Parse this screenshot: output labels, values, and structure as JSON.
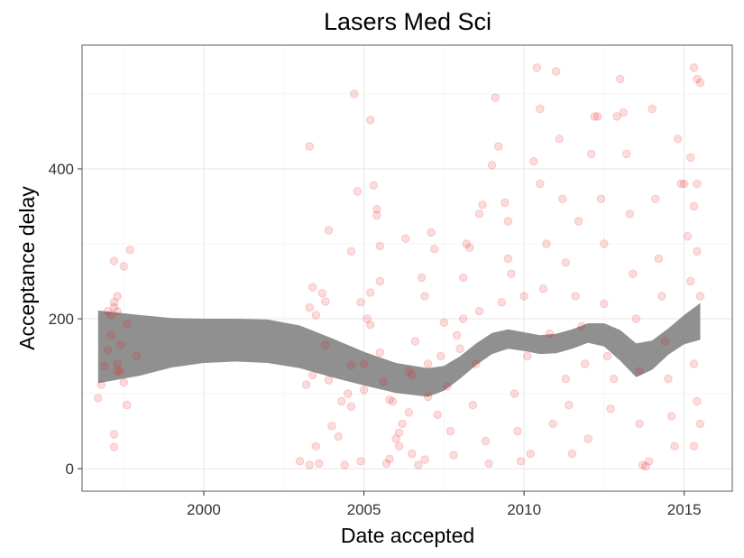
{
  "chart_data": {
    "type": "scatter",
    "title": "Lasers Med Sci",
    "xlabel": "Date accepted",
    "ylabel": "Acceptance delay",
    "xlim": [
      1996.2,
      2016.5
    ],
    "ylim": [
      -30,
      565
    ],
    "x_ticks": [
      2000,
      2005,
      2010,
      2015
    ],
    "y_ticks": [
      0,
      200,
      400
    ],
    "x_tick_labels": [
      "2000",
      "2005",
      "2010",
      "2015"
    ],
    "y_tick_labels": [
      "0",
      "200",
      "400"
    ],
    "grid": true,
    "legend": "none",
    "point_color": "#ee2222",
    "band_color": "#8a8a8a",
    "smooth_band": {
      "x": [
        1996.7,
        1998.0,
        1999.0,
        2000.0,
        2001.0,
        2002.0,
        2003.0,
        2004.0,
        2005.0,
        2006.0,
        2007.0,
        2007.5,
        2008.0,
        2008.5,
        2009.0,
        2009.5,
        2010.0,
        2010.5,
        2011.0,
        2011.5,
        2012.0,
        2012.5,
        2013.0,
        2013.5,
        2014.0,
        2014.5,
        2015.0,
        2015.5
      ],
      "upper": [
        211,
        205,
        201,
        200,
        200,
        199,
        191,
        174,
        156,
        141,
        134,
        137,
        150,
        167,
        181,
        186,
        182,
        178,
        180,
        186,
        194,
        194,
        185,
        167,
        171,
        187,
        205,
        221
      ],
      "lower": [
        114,
        124,
        135,
        141,
        143,
        141,
        134,
        122,
        111,
        101,
        96,
        104,
        120,
        138,
        153,
        160,
        157,
        153,
        154,
        160,
        168,
        163,
        144,
        122,
        132,
        152,
        166,
        172
      ]
    },
    "points": [
      [
        1996.7,
        94
      ],
      [
        1996.8,
        112
      ],
      [
        1996.9,
        137
      ],
      [
        1997.0,
        158
      ],
      [
        1997.1,
        178
      ],
      [
        1997.1,
        205
      ],
      [
        1997.2,
        215
      ],
      [
        1997.2,
        222
      ],
      [
        1997.3,
        230
      ],
      [
        1997.3,
        210
      ],
      [
        1997.2,
        277
      ],
      [
        1997.5,
        270
      ],
      [
        1997.7,
        292
      ],
      [
        1997.6,
        193
      ],
      [
        1997.4,
        165
      ],
      [
        1997.3,
        130
      ],
      [
        1997.5,
        115
      ],
      [
        1997.6,
        85
      ],
      [
        1997.4,
        130
      ],
      [
        1997.2,
        46
      ],
      [
        1997.2,
        29
      ],
      [
        1997.9,
        150
      ],
      [
        1997.0,
        210
      ],
      [
        1997.3,
        140
      ],
      [
        2003.0,
        10
      ],
      [
        2003.3,
        5
      ],
      [
        2003.5,
        30
      ],
      [
        2003.6,
        7
      ],
      [
        2003.2,
        112
      ],
      [
        2003.4,
        125
      ],
      [
        2003.3,
        215
      ],
      [
        2003.5,
        205
      ],
      [
        2003.4,
        242
      ],
      [
        2003.3,
        430
      ],
      [
        2003.7,
        234
      ],
      [
        2003.8,
        223
      ],
      [
        2003.9,
        318
      ],
      [
        2003.8,
        165
      ],
      [
        2003.9,
        118
      ],
      [
        2004.0,
        57
      ],
      [
        2004.2,
        43
      ],
      [
        2004.3,
        90
      ],
      [
        2004.4,
        5
      ],
      [
        2004.5,
        100
      ],
      [
        2004.6,
        138
      ],
      [
        2004.6,
        83
      ],
      [
        2004.7,
        500
      ],
      [
        2004.8,
        370
      ],
      [
        2004.9,
        222
      ],
      [
        2004.6,
        290
      ],
      [
        2004.9,
        10
      ],
      [
        2005.0,
        105
      ],
      [
        2005.0,
        140
      ],
      [
        2005.1,
        200
      ],
      [
        2005.2,
        192
      ],
      [
        2005.4,
        346
      ],
      [
        2005.4,
        338
      ],
      [
        2005.5,
        297
      ],
      [
        2005.3,
        378
      ],
      [
        2005.2,
        465
      ],
      [
        2005.5,
        155
      ],
      [
        2005.8,
        92
      ],
      [
        2005.9,
        90
      ],
      [
        2005.2,
        235
      ],
      [
        2005.5,
        250
      ],
      [
        2005.6,
        116
      ],
      [
        2005.7,
        7
      ],
      [
        2005.8,
        13
      ],
      [
        2006.0,
        40
      ],
      [
        2006.1,
        30
      ],
      [
        2006.2,
        60
      ],
      [
        2006.4,
        130
      ],
      [
        2006.5,
        20
      ],
      [
        2006.7,
        5
      ],
      [
        2006.9,
        12
      ],
      [
        2006.3,
        307
      ],
      [
        2006.1,
        48
      ],
      [
        2006.4,
        75
      ],
      [
        2006.5,
        125
      ],
      [
        2006.6,
        170
      ],
      [
        2006.8,
        255
      ],
      [
        2006.9,
        230
      ],
      [
        2007.0,
        96
      ],
      [
        2007.0,
        140
      ],
      [
        2007.1,
        315
      ],
      [
        2007.2,
        293
      ],
      [
        2007.3,
        72
      ],
      [
        2007.4,
        150
      ],
      [
        2007.5,
        195
      ],
      [
        2007.6,
        110
      ],
      [
        2007.7,
        50
      ],
      [
        2007.8,
        18
      ],
      [
        2007.9,
        178
      ],
      [
        2008.0,
        160
      ],
      [
        2008.1,
        200
      ],
      [
        2008.1,
        255
      ],
      [
        2008.2,
        300
      ],
      [
        2008.3,
        295
      ],
      [
        2008.4,
        85
      ],
      [
        2008.5,
        140
      ],
      [
        2008.6,
        210
      ],
      [
        2008.6,
        340
      ],
      [
        2008.7,
        352
      ],
      [
        2008.8,
        37
      ],
      [
        2008.9,
        7
      ],
      [
        2009.0,
        405
      ],
      [
        2009.1,
        495
      ],
      [
        2009.2,
        430
      ],
      [
        2009.3,
        222
      ],
      [
        2009.4,
        355
      ],
      [
        2009.5,
        330
      ],
      [
        2009.5,
        280
      ],
      [
        2009.6,
        260
      ],
      [
        2009.7,
        100
      ],
      [
        2009.8,
        50
      ],
      [
        2009.9,
        10
      ],
      [
        2010.0,
        230
      ],
      [
        2010.1,
        150
      ],
      [
        2010.2,
        20
      ],
      [
        2010.3,
        410
      ],
      [
        2010.4,
        535
      ],
      [
        2010.5,
        480
      ],
      [
        2010.5,
        380
      ],
      [
        2010.6,
        240
      ],
      [
        2010.7,
        300
      ],
      [
        2010.8,
        180
      ],
      [
        2010.9,
        60
      ],
      [
        2011.0,
        530
      ],
      [
        2011.1,
        440
      ],
      [
        2011.2,
        360
      ],
      [
        2011.3,
        275
      ],
      [
        2011.3,
        120
      ],
      [
        2011.4,
        85
      ],
      [
        2011.5,
        20
      ],
      [
        2011.6,
        230
      ],
      [
        2011.7,
        330
      ],
      [
        2011.8,
        190
      ],
      [
        2011.9,
        140
      ],
      [
        2012.0,
        40
      ],
      [
        2012.1,
        420
      ],
      [
        2012.2,
        470
      ],
      [
        2012.3,
        470
      ],
      [
        2012.4,
        360
      ],
      [
        2012.5,
        300
      ],
      [
        2012.5,
        220
      ],
      [
        2012.6,
        150
      ],
      [
        2012.7,
        80
      ],
      [
        2012.8,
        120
      ],
      [
        2012.9,
        470
      ],
      [
        2013.0,
        520
      ],
      [
        2013.1,
        475
      ],
      [
        2013.2,
        420
      ],
      [
        2013.3,
        340
      ],
      [
        2013.4,
        260
      ],
      [
        2013.5,
        200
      ],
      [
        2013.6,
        130
      ],
      [
        2013.6,
        60
      ],
      [
        2013.7,
        5
      ],
      [
        2013.8,
        3
      ],
      [
        2013.9,
        10
      ],
      [
        2014.0,
        480
      ],
      [
        2014.1,
        360
      ],
      [
        2014.2,
        280
      ],
      [
        2014.3,
        230
      ],
      [
        2014.4,
        170
      ],
      [
        2014.5,
        120
      ],
      [
        2014.6,
        70
      ],
      [
        2014.7,
        30
      ],
      [
        2014.8,
        440
      ],
      [
        2014.9,
        380
      ],
      [
        2015.0,
        380
      ],
      [
        2015.1,
        310
      ],
      [
        2015.2,
        250
      ],
      [
        2015.2,
        415
      ],
      [
        2015.3,
        535
      ],
      [
        2015.4,
        520
      ],
      [
        2015.5,
        515
      ],
      [
        2015.4,
        380
      ],
      [
        2015.3,
        350
      ],
      [
        2015.4,
        290
      ],
      [
        2015.5,
        230
      ],
      [
        2015.3,
        140
      ],
      [
        2015.4,
        90
      ],
      [
        2015.5,
        60
      ],
      [
        2015.3,
        30
      ]
    ]
  }
}
